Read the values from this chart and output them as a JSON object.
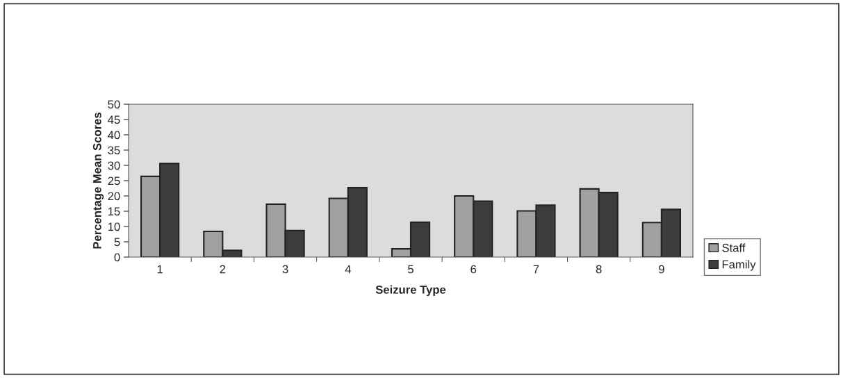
{
  "chart_data": {
    "type": "bar",
    "xlabel": "Seizure Type",
    "ylabel": "Percentage Mean Scores",
    "categories": [
      "1",
      "2",
      "3",
      "4",
      "5",
      "6",
      "7",
      "8",
      "9"
    ],
    "series": [
      {
        "name": "Staff",
        "color": "#a0a0a0",
        "values": [
          26.4,
          8.4,
          17.3,
          19.2,
          2.7,
          20.0,
          15.1,
          22.3,
          11.3
        ]
      },
      {
        "name": "Family",
        "color": "#3c3c3c",
        "values": [
          30.6,
          2.2,
          8.7,
          22.7,
          11.4,
          18.3,
          17.0,
          21.1,
          15.6
        ]
      }
    ],
    "ylim": [
      0,
      50
    ],
    "yticks": [
      0,
      5,
      10,
      15,
      20,
      25,
      30,
      35,
      40,
      45,
      50
    ],
    "grid": false,
    "legend": "right"
  }
}
